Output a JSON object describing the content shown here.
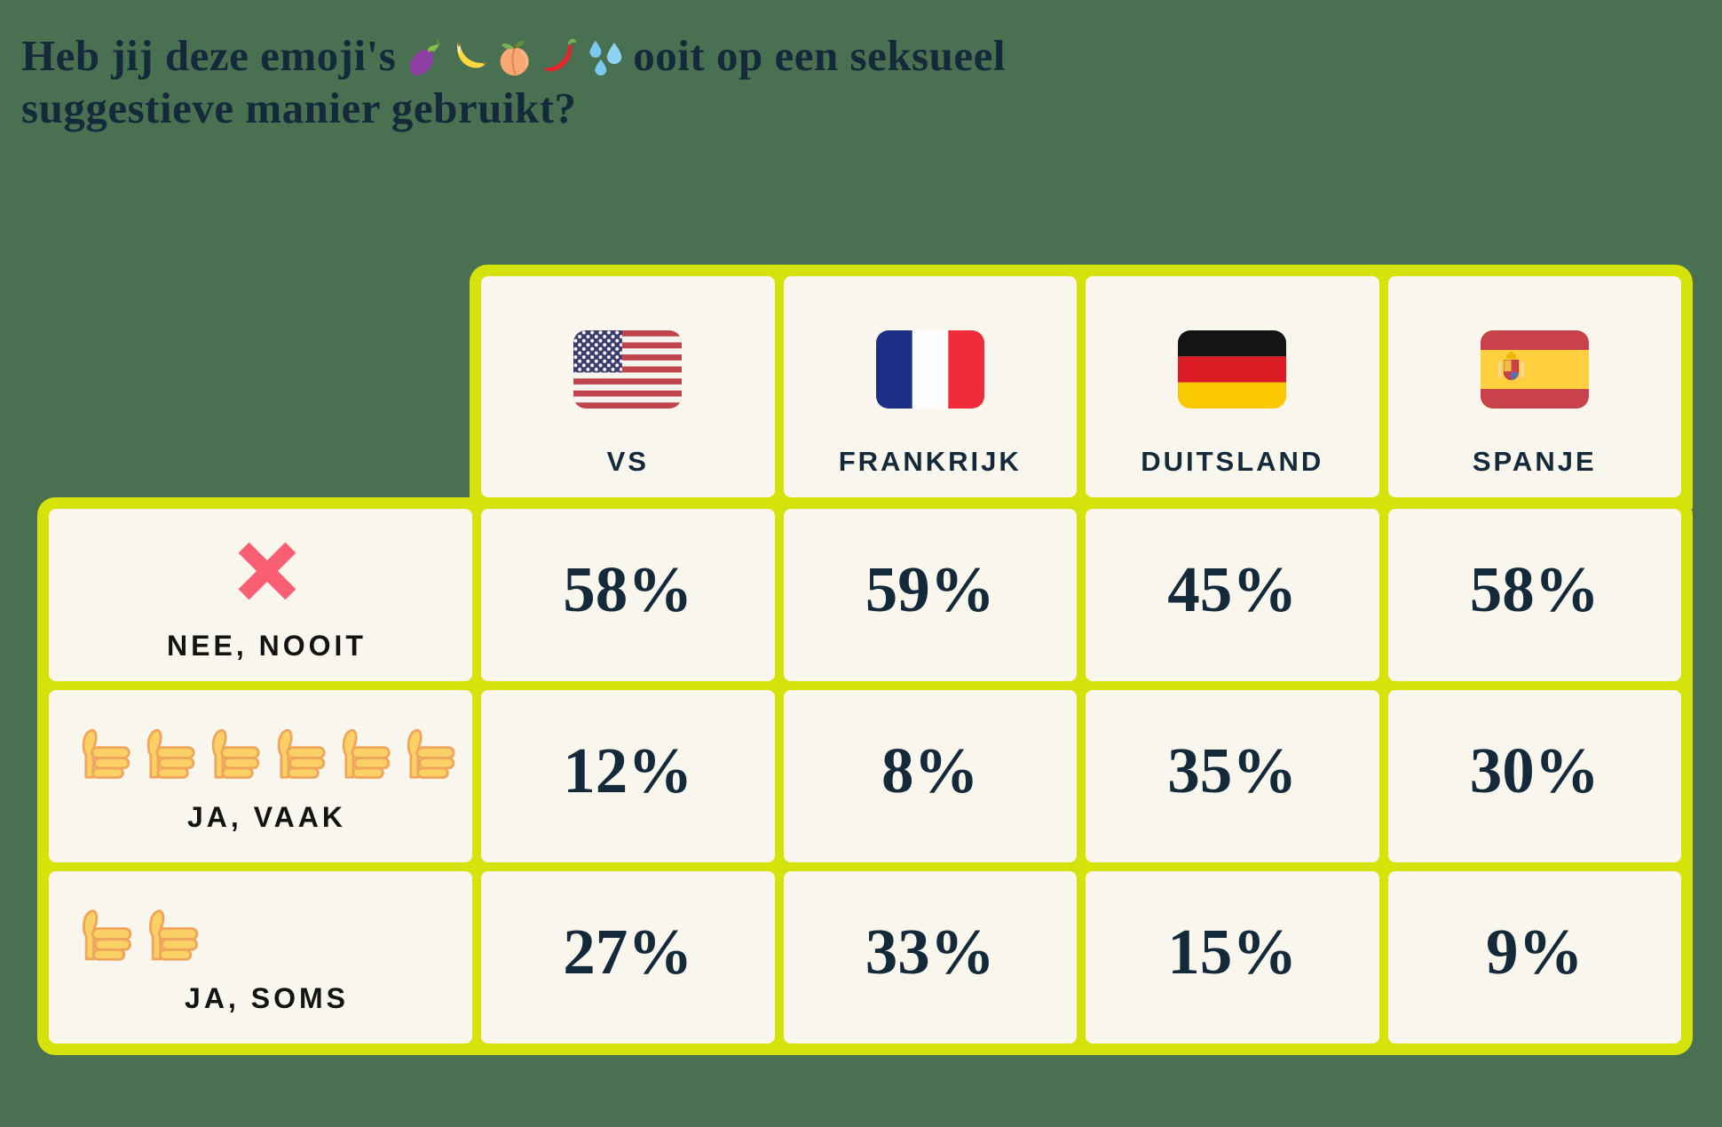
{
  "title": {
    "line1_before_emojis": "Heb jij deze emoji's",
    "emojis": [
      "eggplant",
      "banana",
      "peach",
      "hot-pepper",
      "sweat-droplets"
    ],
    "line1_after_emojis": "ooit op een seksueel",
    "line2": "suggestieve manier gebruikt?"
  },
  "colors": {
    "background_green": "#4A7052",
    "table_border_lime": "#D5E30B",
    "cell_cream": "#F8F6ED",
    "text_navy": "#14293A",
    "row_label_black": "#131313",
    "cross_pink": "#F95E72",
    "thumb_yellow": "#FBD064"
  },
  "chart_data": {
    "type": "table",
    "title": "Heb jij deze emoji's 🍆🍌🍑🌶️💦 ooit op een seksueel suggestieve manier gebruikt?",
    "unit": "%",
    "columns": [
      {
        "label": "VS",
        "flag": "us-flag-icon"
      },
      {
        "label": "FRANKRIJK",
        "flag": "france-flag-icon"
      },
      {
        "label": "DUITSLAND",
        "flag": "germany-flag-icon"
      },
      {
        "label": "SPANJE",
        "flag": "spain-flag-icon"
      }
    ],
    "rows": [
      {
        "label": "NEE, NOOIT",
        "icon": "cross-mark",
        "icon_count": 1,
        "values": [
          58,
          59,
          45,
          58
        ],
        "value_labels": [
          "58%",
          "59%",
          "45%",
          "58%"
        ]
      },
      {
        "label": "JA, VAAK",
        "icon": "thumbs-up",
        "icon_count": 6,
        "values": [
          12,
          8,
          35,
          30
        ],
        "value_labels": [
          "12%",
          "8%",
          "35%",
          "30%"
        ]
      },
      {
        "label": "JA, SOMS",
        "icon": "thumbs-up",
        "icon_count": 2,
        "values": [
          27,
          33,
          15,
          9
        ],
        "value_labels": [
          "27%",
          "33%",
          "15%",
          "9%"
        ]
      }
    ]
  }
}
